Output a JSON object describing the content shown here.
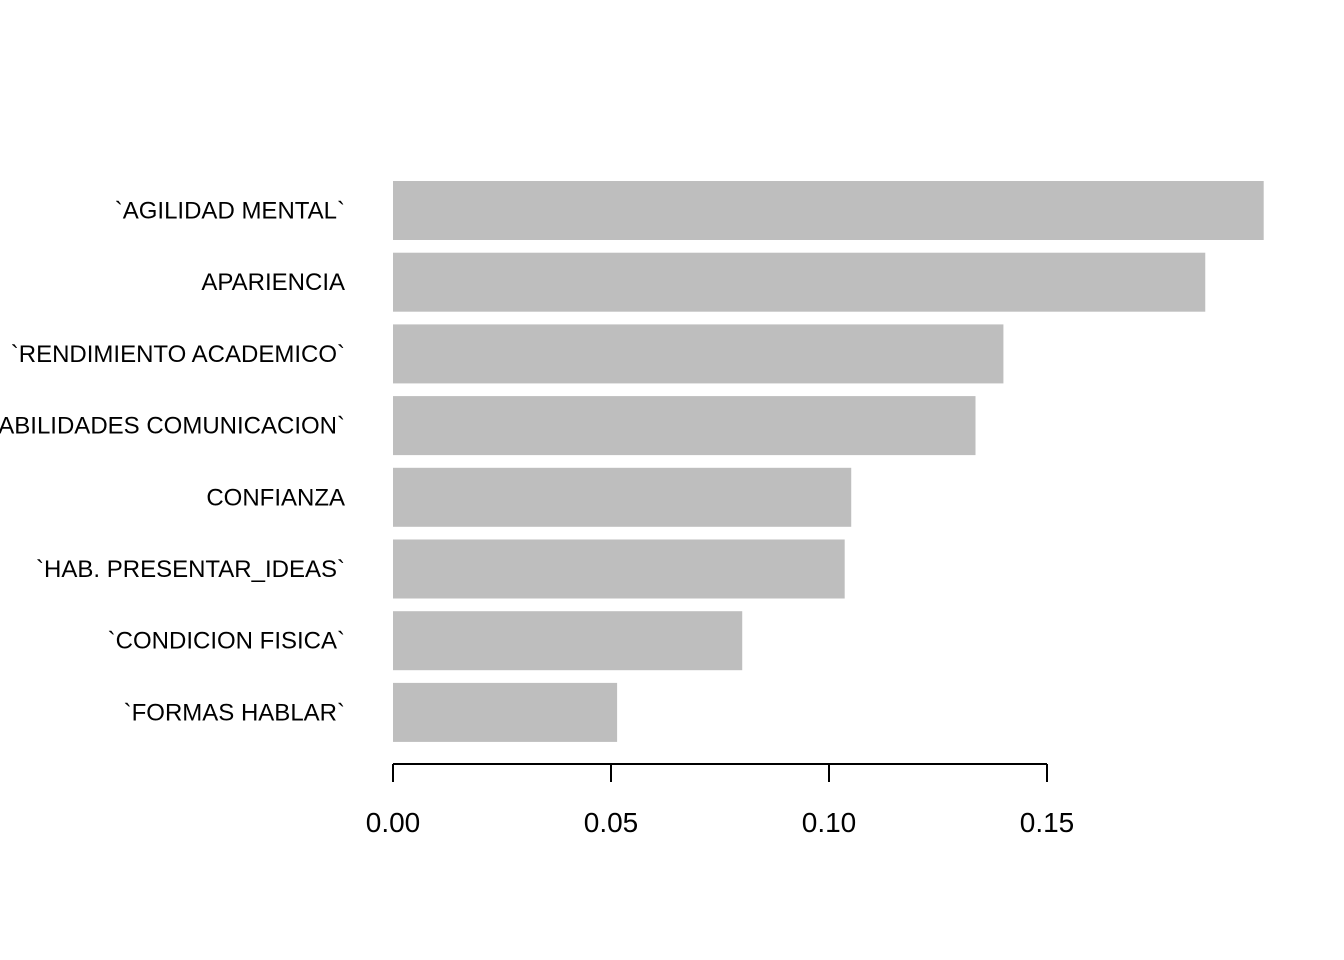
{
  "chart_data": {
    "type": "bar",
    "orientation": "horizontal",
    "title": "",
    "xlabel": "",
    "ylabel": "",
    "categories": [
      "`AGILIDAD MENTAL`",
      "APARIENCIA",
      "`RENDIMIENTO ACADEMICO`",
      "`HABILIDADES COMUNICACION`",
      "CONFIANZA",
      "`HAB. PRESENTAR_IDEAS`",
      "`CONDICION FISICA`",
      "`FORMAS HABLAR`"
    ],
    "values": [
      0.1997,
      0.1863,
      0.14,
      0.1336,
      0.1051,
      0.1036,
      0.0801,
      0.0514
    ],
    "xlim": [
      0,
      0.2
    ],
    "xticks": [
      0,
      0.05,
      0.1,
      0.15
    ],
    "xtick_labels": [
      "0.00",
      "0.05",
      "0.10",
      "0.15"
    ],
    "grid": false,
    "bar_color": "#bebebe"
  }
}
